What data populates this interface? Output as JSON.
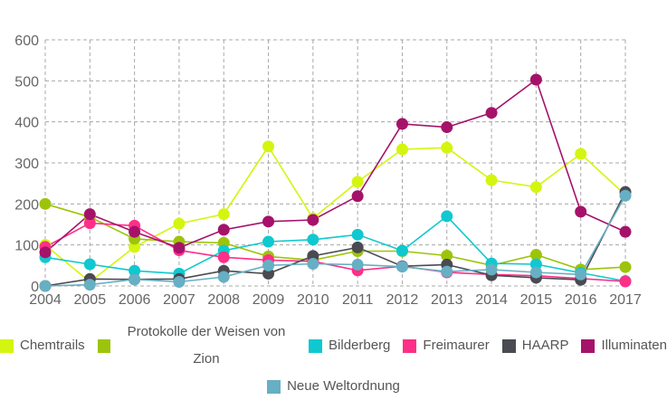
{
  "chart_data": {
    "type": "line",
    "title": "",
    "xlabel": "",
    "ylabel": "",
    "x": [
      "2004",
      "2005",
      "2006",
      "2007",
      "2008",
      "2009",
      "2010",
      "2011",
      "2012",
      "2013",
      "2014",
      "2015",
      "2016",
      "2017"
    ],
    "ylim": [
      0,
      600
    ],
    "yticks": [
      "0",
      "100",
      "200",
      "300",
      "400",
      "500",
      "600"
    ],
    "grid": true,
    "legend_position": "bottom",
    "series": [
      {
        "name": "Chemtrails",
        "color": "#d4f50f",
        "values": [
          100,
          10,
          95,
          152,
          175,
          340,
          165,
          254,
          333,
          337,
          258,
          241,
          322,
          222
        ]
      },
      {
        "name": "Protokolle der Weisen von Zion",
        "color": "#9dc40a",
        "values": [
          200,
          168,
          115,
          108,
          105,
          72,
          63,
          85,
          85,
          74,
          50,
          76,
          40,
          46
        ]
      },
      {
        "name": "Bilderberg",
        "color": "#10c8cf",
        "values": [
          70,
          53,
          37,
          30,
          86,
          108,
          113,
          125,
          86,
          170,
          55,
          53,
          32,
          12
        ]
      },
      {
        "name": "Freimaurer",
        "color": "#ff2f87",
        "values": [
          95,
          153,
          147,
          87,
          70,
          63,
          60,
          38,
          48,
          33,
          28,
          25,
          18,
          11
        ]
      },
      {
        "name": "HAARP",
        "color": "#4a4a52",
        "values": [
          0,
          17,
          16,
          17,
          37,
          30,
          73,
          94,
          48,
          52,
          26,
          20,
          15,
          229
        ]
      },
      {
        "name": "Illuminaten",
        "color": "#a5126a",
        "values": [
          82,
          175,
          132,
          93,
          137,
          157,
          161,
          219,
          395,
          387,
          422,
          503,
          181,
          132
        ]
      },
      {
        "name": "Neue Weltordnung",
        "color": "#67afc4",
        "values": [
          0,
          3,
          16,
          10,
          22,
          50,
          54,
          52,
          47,
          35,
          40,
          33,
          28,
          220
        ]
      }
    ]
  }
}
